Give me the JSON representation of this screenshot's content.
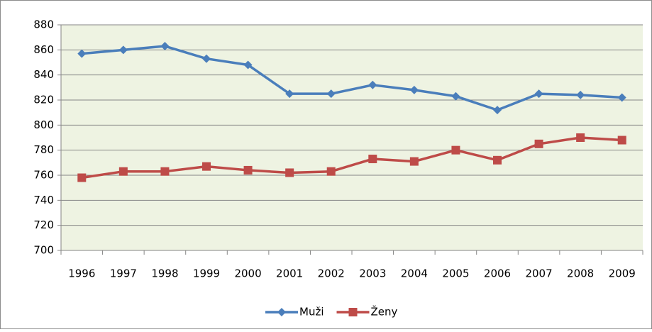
{
  "chart_data": {
    "type": "line",
    "categories": [
      "1996",
      "1997",
      "1998",
      "1999",
      "2000",
      "2001",
      "2002",
      "2003",
      "2004",
      "2005",
      "2006",
      "2007",
      "2008",
      "2009"
    ],
    "series": [
      {
        "name": "Muži",
        "color": "#4a7ebb",
        "marker": "diamond",
        "values": [
          857,
          860,
          863,
          853,
          848,
          825,
          825,
          832,
          828,
          823,
          812,
          825,
          824,
          822
        ]
      },
      {
        "name": "Ženy",
        "color": "#be4b48",
        "marker": "square",
        "values": [
          758,
          763,
          763,
          767,
          764,
          762,
          763,
          773,
          771,
          780,
          772,
          785,
          790,
          788
        ]
      }
    ],
    "ylim": [
      700,
      880
    ],
    "yticks": [
      700,
      720,
      740,
      760,
      780,
      800,
      820,
      840,
      860,
      880
    ],
    "grid": true,
    "legend": "bottom",
    "plot_background": "#eef3e2"
  }
}
